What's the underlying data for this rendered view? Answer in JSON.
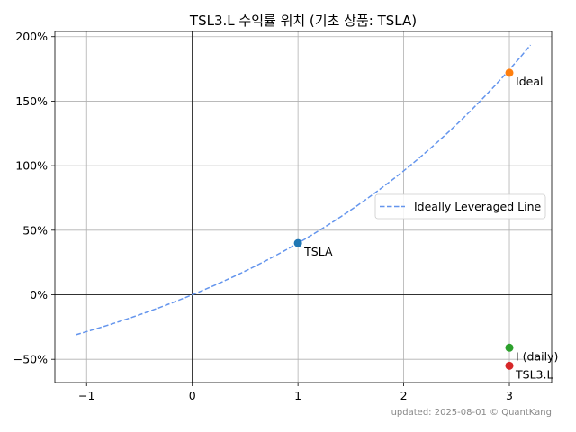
{
  "chart_data": {
    "type": "scatter",
    "title": "TSL3.L 수익률 위치 (기초 상품: TSLA)",
    "xlabel": "",
    "ylabel": "",
    "xlim": [
      -1.3,
      3.4
    ],
    "ylim": [
      -0.68,
      2.04
    ],
    "x_ticks": [
      -1,
      0,
      1,
      2,
      3
    ],
    "x_tick_labels": [
      "−1",
      "0",
      "1",
      "2",
      "3"
    ],
    "y_ticks": [
      -0.5,
      0,
      0.5,
      1.0,
      1.5,
      2.0
    ],
    "y_tick_labels": [
      "−50%",
      "0%",
      "50%",
      "100%",
      "150%",
      "200%"
    ],
    "grid": true,
    "zero_lines": true,
    "legend": {
      "placement": "center-right",
      "entries": [
        "Ideally Leveraged Line"
      ]
    },
    "line": {
      "name": "Ideally Leveraged Line",
      "style": "dashed",
      "color": "#6495ED",
      "x_range": [
        -1.1,
        3.2
      ],
      "formula": "y = 1.4^x - 1"
    },
    "points": [
      {
        "label": "TSLA",
        "x": 1,
        "y": 0.4,
        "color": "#1f77b4"
      },
      {
        "label": "Ideal",
        "x": 3,
        "y": 1.72,
        "color": "#ff7f0e"
      },
      {
        "label": "I (daily)",
        "x": 3,
        "y": -0.41,
        "color": "#2ca02c"
      },
      {
        "label": "TSL3.L",
        "x": 3,
        "y": -0.55,
        "color": "#d62728"
      }
    ]
  },
  "footer": "updated: 2025-08-01 © QuantKang"
}
